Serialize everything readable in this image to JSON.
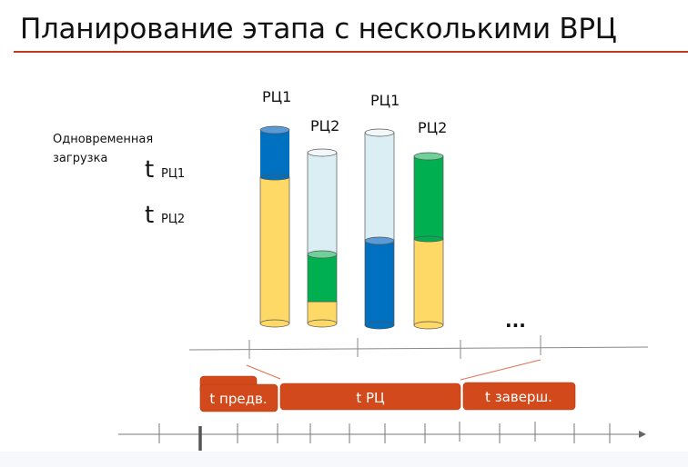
{
  "title": "Планирование этапа с несколькими ВРЦ",
  "left_label": {
    "line1": "Одновременная",
    "line2": "загрузка"
  },
  "legend": [
    {
      "t": "t",
      "sub": "РЦ1"
    },
    {
      "t": "t",
      "sub": "РЦ2"
    }
  ],
  "cylinders": [
    {
      "label": "РЦ1",
      "fill": "full",
      "layers": [
        "yellow",
        "blue"
      ]
    },
    {
      "label": "РЦ2",
      "fill": "partial",
      "layers": [
        "yellow",
        "green",
        "empty"
      ]
    },
    {
      "label": "РЦ1",
      "fill": "partial",
      "layers": [
        "blue",
        "empty"
      ]
    },
    {
      "label": "РЦ2",
      "fill": "full",
      "layers": [
        "yellow",
        "green"
      ]
    }
  ],
  "ellipsis": "...",
  "phases": [
    {
      "label": "t предв."
    },
    {
      "label": "t РЦ"
    },
    {
      "label": "t заверш."
    }
  ],
  "colors": {
    "accent": "#c0391b",
    "phase_box": "#d24a1b",
    "blue": "#0070c0",
    "yellow": "#ffd966",
    "green": "#00b050",
    "empty": "#daeef3"
  }
}
